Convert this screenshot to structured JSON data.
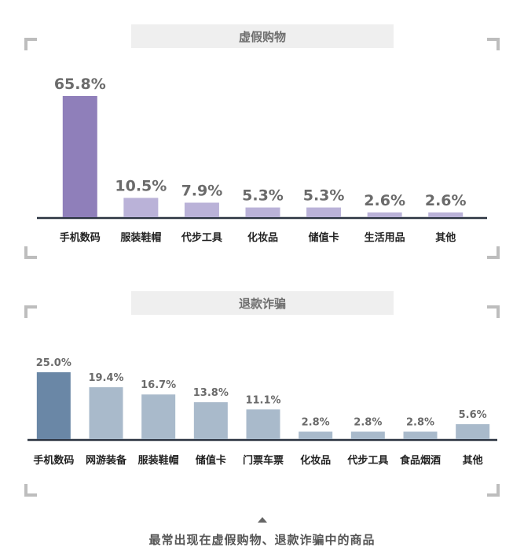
{
  "chart_data": [
    {
      "type": "bar",
      "title": "虚假购物",
      "categories": [
        "手机数码",
        "服装鞋帽",
        "代步工具",
        "化妆品",
        "储值卡",
        "生活用品",
        "其他"
      ],
      "values": [
        65.8,
        10.5,
        7.9,
        5.3,
        5.3,
        2.6,
        2.6
      ],
      "value_labels": [
        "65.8%",
        "10.5%",
        "7.9%",
        "5.3%",
        "5.3%",
        "2.6%",
        "2.6%"
      ],
      "ylim": [
        0,
        65.8
      ],
      "grid": false,
      "colors": {
        "highlight": "#8f7fba",
        "bar": "#bab2d8",
        "axis": "#2b3340",
        "label": "#6b6b6b"
      }
    },
    {
      "type": "bar",
      "title": "退款诈骗",
      "categories": [
        "手机数码",
        "网游装备",
        "服装鞋帽",
        "储值卡",
        "门票车票",
        "化妆品",
        "代步工具",
        "食品烟酒",
        "其他"
      ],
      "values": [
        25.0,
        19.4,
        16.7,
        13.8,
        11.1,
        2.8,
        2.8,
        2.8,
        5.6
      ],
      "value_labels": [
        "25.0%",
        "19.4%",
        "16.7%",
        "13.8%",
        "11.1%",
        "2.8%",
        "2.8%",
        "2.8%",
        "5.6%"
      ],
      "ylim": [
        0,
        25.0
      ],
      "grid": false,
      "colors": {
        "highlight": "#6a87a6",
        "bar": "#a9bacb",
        "axis": "#2b3340",
        "label": "#6b6b6b"
      }
    }
  ],
  "footer": {
    "caption": "最常出现在虚假购物、退款诈骗中的商品"
  }
}
